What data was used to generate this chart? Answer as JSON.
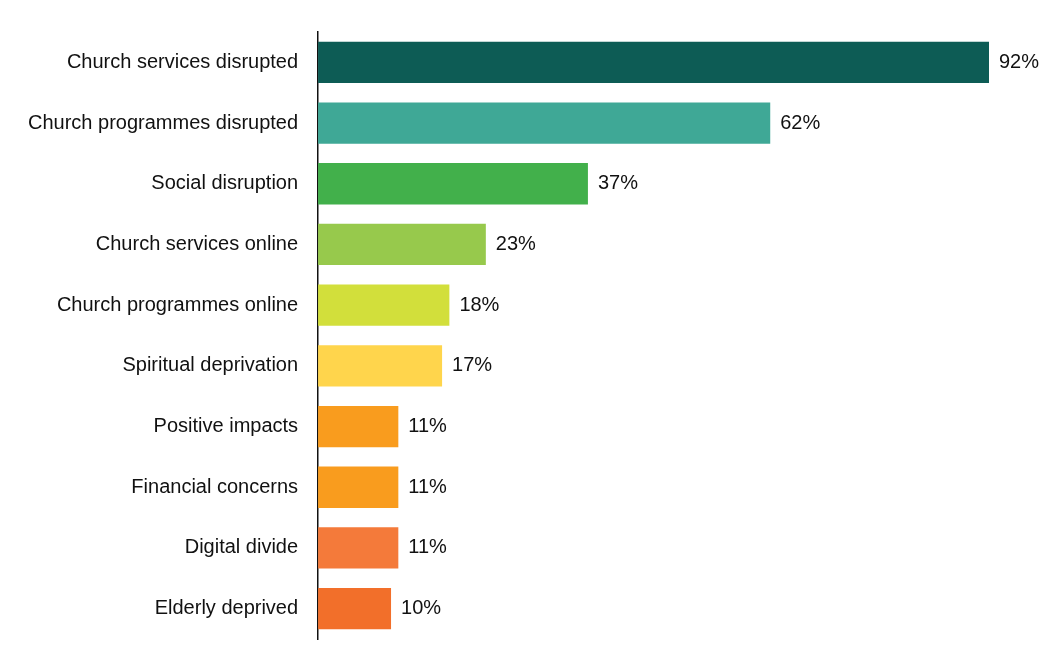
{
  "chart_data": {
    "type": "bar",
    "orientation": "horizontal",
    "categories": [
      "Church services disrupted",
      "Church programmes disrupted",
      "Social disruption",
      "Church services online",
      "Church programmes online",
      "Spiritual deprivation",
      "Positive impacts",
      "Financial concerns",
      "Digital divide",
      "Elderly deprived"
    ],
    "values": [
      92,
      62,
      37,
      23,
      18,
      17,
      11,
      11,
      11,
      10
    ],
    "colors": [
      "#0d5c55",
      "#3fa896",
      "#42b04b",
      "#97c94c",
      "#d2df3b",
      "#ffd54c",
      "#f99c1e",
      "#f99c1e",
      "#f47a3a",
      "#f26f2a"
    ],
    "value_labels": [
      "92%",
      "62%",
      "37%",
      "23%",
      "18%",
      "17%",
      "11%",
      "11%",
      "11%",
      "10%"
    ],
    "legend": false,
    "tick_labels": "y"
  }
}
